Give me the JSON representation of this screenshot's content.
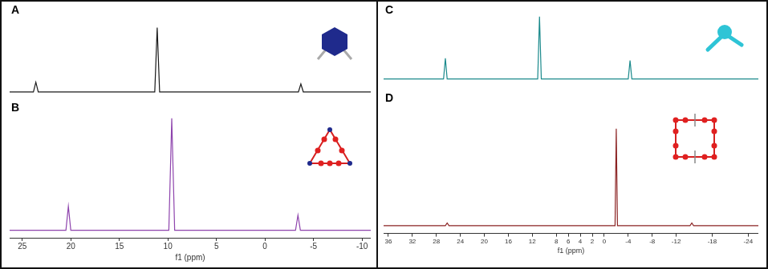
{
  "chart_data": [
    {
      "type": "line",
      "title": "A",
      "x": [
        26.3,
        23.85,
        23.6,
        23.35,
        11.35,
        11.1,
        10.85,
        -3.45,
        -3.7,
        -3.95,
        -10.9
      ],
      "values": [
        12,
        12,
        23,
        12,
        12,
        85,
        12,
        12,
        21,
        12,
        12
      ],
      "color": "#1a1a1a",
      "xlim": [
        26.3,
        -10.9
      ],
      "ylim": [
        0,
        100
      ],
      "tick_labels": false,
      "grid": false
    },
    {
      "type": "line",
      "title": "B",
      "x": [
        26.3,
        20.5,
        20.25,
        20.0,
        9.9,
        9.6,
        9.3,
        -3.15,
        -3.4,
        -3.65,
        -10.9
      ],
      "values": [
        6,
        6,
        25,
        6,
        6,
        95,
        6,
        6,
        18,
        6,
        6
      ],
      "color": "#8e44ad",
      "xlim": [
        26.3,
        -10.9
      ],
      "xticks": [
        25,
        20,
        15,
        10,
        5,
        0,
        -5,
        -10
      ],
      "ylim": [
        0,
        100
      ],
      "xlabel": "f1 (ppm)",
      "tick_labels": "x",
      "grid": false
    },
    {
      "type": "line",
      "title": "C",
      "x": [
        36.8,
        26.8,
        26.5,
        26.2,
        11.1,
        10.8,
        10.5,
        -4.0,
        -4.3,
        -4.6,
        -25.7
      ],
      "values": [
        16,
        16,
        43,
        16,
        16,
        97,
        16,
        16,
        40,
        16,
        16
      ],
      "color": "#1b8a8c",
      "xlim": [
        36.8,
        -25.7
      ],
      "ylim": [
        0,
        100
      ],
      "tick_labels": false,
      "grid": false
    },
    {
      "type": "line",
      "title": "D",
      "x": [
        36.8,
        26.5,
        26.2,
        25.9,
        -1.8,
        -2.0,
        -2.2,
        -14.3,
        -14.6,
        -14.9,
        -25.7
      ],
      "values": [
        6,
        6,
        8,
        6,
        6,
        80,
        6,
        6,
        8,
        6,
        6
      ],
      "color": "#8b2323",
      "xlim": [
        36.8,
        -25.7
      ],
      "xticks": [
        36,
        32,
        28,
        24,
        20,
        16,
        12,
        8,
        6,
        4,
        2,
        0,
        -4,
        -8,
        -12,
        -18,
        -24
      ],
      "ylim": [
        0,
        100
      ],
      "xlabel": "f1 (ppm)",
      "tick_labels": "x",
      "grid": false
    }
  ]
}
